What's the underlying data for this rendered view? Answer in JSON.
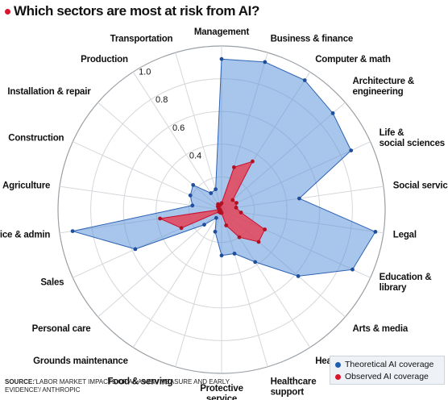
{
  "title": "Which sectors are most at risk from AI?",
  "source_label": "SOURCE:",
  "source_text": "'LABOR MARKET IMPACTS OF AI: A NEW MEASURE AND EARLY EVIDENCE'/ ANTHROPIC",
  "colors": {
    "title_dot": "#d8152c",
    "theoretical": "#1f5fb0",
    "observed": "#d8152c"
  },
  "chart_data": {
    "type": "radar",
    "title": "Which sectors are most at risk from AI?",
    "categories": [
      [
        "Management"
      ],
      [
        "Business & finance"
      ],
      [
        "Computer & math"
      ],
      [
        "Architecture &",
        "engineering"
      ],
      [
        "Life &",
        "social sciences"
      ],
      [
        "Social services"
      ],
      [
        "Legal"
      ],
      [
        "Education &",
        "library"
      ],
      [
        "Arts & media"
      ],
      [
        "Healthcare practitioners"
      ],
      [
        "Healthcare",
        "support"
      ],
      [
        "Protective",
        "service"
      ],
      [
        "Food & serving"
      ],
      [
        "Grounds maintenance"
      ],
      [
        "Personal care"
      ],
      [
        "Sales"
      ],
      [
        "Office & admin"
      ],
      [
        "Agriculture"
      ],
      [
        "Construction"
      ],
      [
        "Installation & repair"
      ],
      [
        "Production"
      ],
      [
        "Transportation"
      ]
    ],
    "tick_labels": [
      "0.4",
      "0.6",
      "0.8",
      "1.0"
    ],
    "rlim": [
      0,
      1.0
    ],
    "grid": true,
    "legend_position": "bottom-right",
    "series": [
      {
        "name": "Theoretical AI coverage",
        "values": [
          0.92,
          0.94,
          0.94,
          0.9,
          0.87,
          0.48,
          0.95,
          0.88,
          0.62,
          0.38,
          0.28,
          0.28,
          0.14,
          0.06,
          0.14,
          0.58,
          0.92,
          0.18,
          0.21,
          0.23,
          0.12,
          0.13
        ]
      },
      {
        "name": "Observed AI coverage",
        "values": [
          0.04,
          0.27,
          0.35,
          0.09,
          0.1,
          0.09,
          0.12,
          0.29,
          0.3,
          0.2,
          0.1,
          0.02,
          0.02,
          0.01,
          0.02,
          0.27,
          0.38,
          0.01,
          0.02,
          0.03,
          0.04,
          0.03
        ]
      }
    ]
  }
}
